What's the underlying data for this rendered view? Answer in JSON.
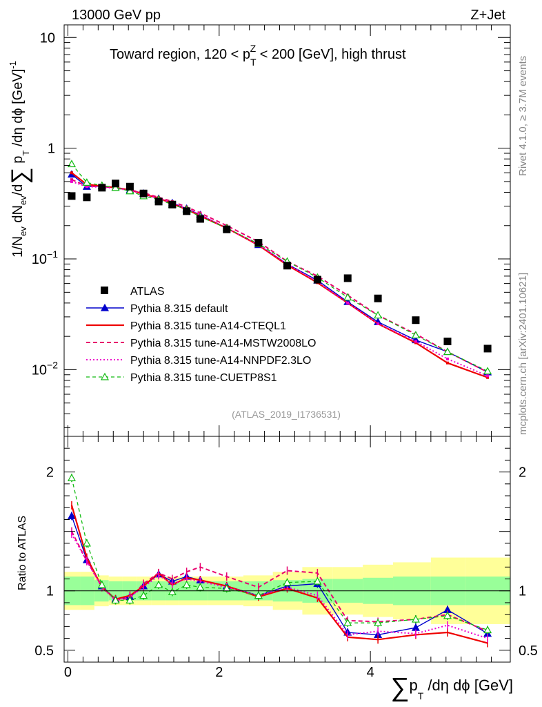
{
  "header": {
    "left": "13000 GeV pp",
    "right": "Z+Jet"
  },
  "side_text": {
    "rivet": "Rivet 4.1.0, ≥ 3.7M events",
    "mcplots": "mcplots.cern.ch [arXiv:2401.10621]"
  },
  "plot_title": {
    "prefix": "Toward region, 120 < p",
    "sup": "Z",
    "sub": "T",
    "suffix": " < 200 [GeV], high thrust"
  },
  "analysis_tag": "(ATLAS_2019_I1736531)",
  "y_axis_main": {
    "part1": "1/N",
    "ev1": "ev",
    "part2": " dN",
    "ev2": "ev",
    "part3": "/d",
    "sum": "∑",
    "part4": " p",
    "sub": "T",
    "part5": " /dη dϕ  [GeV]",
    "exp": "-1"
  },
  "y_axis_ratio": "Ratio to ATLAS",
  "x_axis": {
    "sum": "∑",
    "part1": "p",
    "sub": "T",
    "part2": " /dη dϕ [GeV]"
  },
  "main_ticks": {
    "y": [
      {
        "v": 10,
        "mant": "10",
        "exp": ""
      },
      {
        "v": 1,
        "mant": "1",
        "exp": ""
      },
      {
        "v": 0.1,
        "mant": "10",
        "exp": "−1"
      },
      {
        "v": 0.01,
        "mant": "10",
        "exp": "−2"
      }
    ]
  },
  "ratio_ticks": {
    "y": [
      {
        "v": 2,
        "label": "2"
      },
      {
        "v": 1,
        "label": "1"
      },
      {
        "v": 0.5,
        "label": "0.5"
      }
    ],
    "x": [
      {
        "v": 0,
        "label": "0"
      },
      {
        "v": 2,
        "label": "2"
      },
      {
        "v": 4,
        "label": "4"
      }
    ]
  },
  "colors": {
    "atlas": "#000000",
    "default": "#0000cc",
    "cteql1": "#ee0000",
    "mstw": "#e8006e",
    "nnpdf": "#ee00cc",
    "cuetp": "#11bb11",
    "band_inner": "#99ff99",
    "band_outer": "#ffff99",
    "side_text": "#888888"
  },
  "chart_data": {
    "type": "scatter",
    "title": "Toward region, 120 < pT^Z < 200 [GeV], high thrust",
    "xlabel": "∑ pT /dη dϕ [GeV]",
    "ylabel": "1/Nev dNev/d∑ pT /dη dϕ [GeV]^-1",
    "xlim": [
      -0.05,
      5.85
    ],
    "ylim_main": [
      0.0025,
      13
    ],
    "ylim_ratio": [
      0.4,
      2.3
    ],
    "log_y_main": true,
    "x": [
      0.05,
      0.25,
      0.45,
      0.63,
      0.82,
      1.0,
      1.2,
      1.38,
      1.57,
      1.75,
      2.1,
      2.52,
      2.9,
      3.3,
      3.7,
      4.1,
      4.6,
      5.02,
      5.55
    ],
    "series": [
      {
        "name": "ATLAS",
        "key": "atlas",
        "style": "data",
        "values": [
          0.37,
          0.36,
          0.44,
          0.48,
          0.45,
          0.39,
          0.33,
          0.31,
          0.27,
          0.23,
          0.185,
          0.14,
          0.087,
          0.065,
          0.067,
          0.044,
          0.028,
          0.018,
          0.0155
        ]
      },
      {
        "name": "Pythia 8.315 default",
        "key": "default",
        "style": "line-tri-filled",
        "values": [
          0.58,
          0.45,
          0.455,
          0.44,
          0.42,
          0.39,
          0.35,
          0.32,
          0.285,
          0.25,
          0.19,
          0.134,
          0.09,
          0.064,
          0.041,
          0.027,
          0.0185,
          0.0145,
          0.0095
        ],
        "ratio": [
          1.63,
          1.26,
          1.04,
          0.93,
          0.95,
          1.04,
          1.14,
          1.08,
          1.12,
          1.09,
          1.04,
          0.96,
          1.04,
          1.06,
          0.65,
          0.63,
          0.69,
          0.84,
          0.64
        ]
      },
      {
        "name": "Pythia 8.315 tune-A14-CTEQL1",
        "key": "cteql1",
        "style": "solid",
        "values": [
          0.6,
          0.47,
          0.455,
          0.44,
          0.42,
          0.385,
          0.355,
          0.315,
          0.28,
          0.245,
          0.19,
          0.133,
          0.088,
          0.061,
          0.04,
          0.026,
          0.0175,
          0.0115,
          0.0085
        ],
        "ratio": [
          1.72,
          1.28,
          1.03,
          0.93,
          0.96,
          1.04,
          1.15,
          1.05,
          1.11,
          1.09,
          1.04,
          0.95,
          1.02,
          0.94,
          0.61,
          0.59,
          0.63,
          0.65,
          0.56
        ]
      },
      {
        "name": "Pythia 8.315 tune-A14-MSTW2008LO",
        "key": "mstw",
        "style": "dash",
        "values": [
          0.52,
          0.455,
          0.45,
          0.44,
          0.42,
          0.395,
          0.36,
          0.33,
          0.295,
          0.26,
          0.2,
          0.143,
          0.095,
          0.07,
          0.047,
          0.031,
          0.021,
          0.0145,
          0.0095
        ],
        "ratio": [
          1.5,
          1.25,
          1.04,
          0.92,
          0.94,
          1.06,
          1.15,
          1.1,
          1.16,
          1.2,
          1.12,
          1.03,
          1.17,
          1.15,
          0.75,
          0.74,
          0.76,
          0.8,
          0.66
        ]
      },
      {
        "name": "Pythia 8.315 tune-A14-NNPDF2.3LO",
        "key": "nnpdf",
        "style": "dot",
        "values": [
          0.5,
          0.45,
          0.445,
          0.435,
          0.415,
          0.385,
          0.35,
          0.32,
          0.285,
          0.25,
          0.19,
          0.134,
          0.09,
          0.062,
          0.04,
          0.026,
          0.018,
          0.0125,
          0.0088
        ],
        "ratio": [
          1.48,
          1.25,
          1.03,
          0.92,
          0.95,
          1.03,
          1.13,
          1.06,
          1.1,
          1.08,
          1.03,
          0.96,
          1.03,
          0.96,
          0.63,
          0.66,
          0.64,
          0.71,
          0.6
        ]
      },
      {
        "name": "Pythia 8.315 tune-CUETP8S1",
        "key": "cuetp",
        "style": "dash-tri-open",
        "values": [
          0.72,
          0.49,
          0.46,
          0.44,
          0.41,
          0.37,
          0.345,
          0.31,
          0.28,
          0.24,
          0.19,
          0.137,
          0.095,
          0.068,
          0.045,
          0.031,
          0.0205,
          0.0145,
          0.0097
        ],
        "ratio": [
          1.95,
          1.4,
          1.05,
          0.92,
          0.92,
          0.96,
          1.05,
          0.99,
          1.05,
          1.03,
          1.02,
          0.96,
          1.07,
          1.08,
          0.73,
          0.73,
          0.76,
          0.79,
          0.67
        ]
      }
    ],
    "ratio_bands": {
      "edges": [
        -0.05,
        0.16,
        0.35,
        0.54,
        0.72,
        0.91,
        1.1,
        1.29,
        1.47,
        1.66,
        1.85,
        2.32,
        2.71,
        3.1,
        3.5,
        3.9,
        4.3,
        4.8,
        5.25,
        5.85
      ],
      "inner": [
        0.12,
        0.12,
        0.09,
        0.08,
        0.08,
        0.08,
        0.08,
        0.08,
        0.08,
        0.08,
        0.08,
        0.08,
        0.09,
        0.1,
        0.1,
        0.11,
        0.12,
        0.12,
        0.12
      ],
      "outer": [
        0.16,
        0.16,
        0.13,
        0.12,
        0.12,
        0.12,
        0.12,
        0.12,
        0.12,
        0.12,
        0.12,
        0.13,
        0.16,
        0.2,
        0.2,
        0.22,
        0.24,
        0.28,
        0.28
      ]
    }
  }
}
